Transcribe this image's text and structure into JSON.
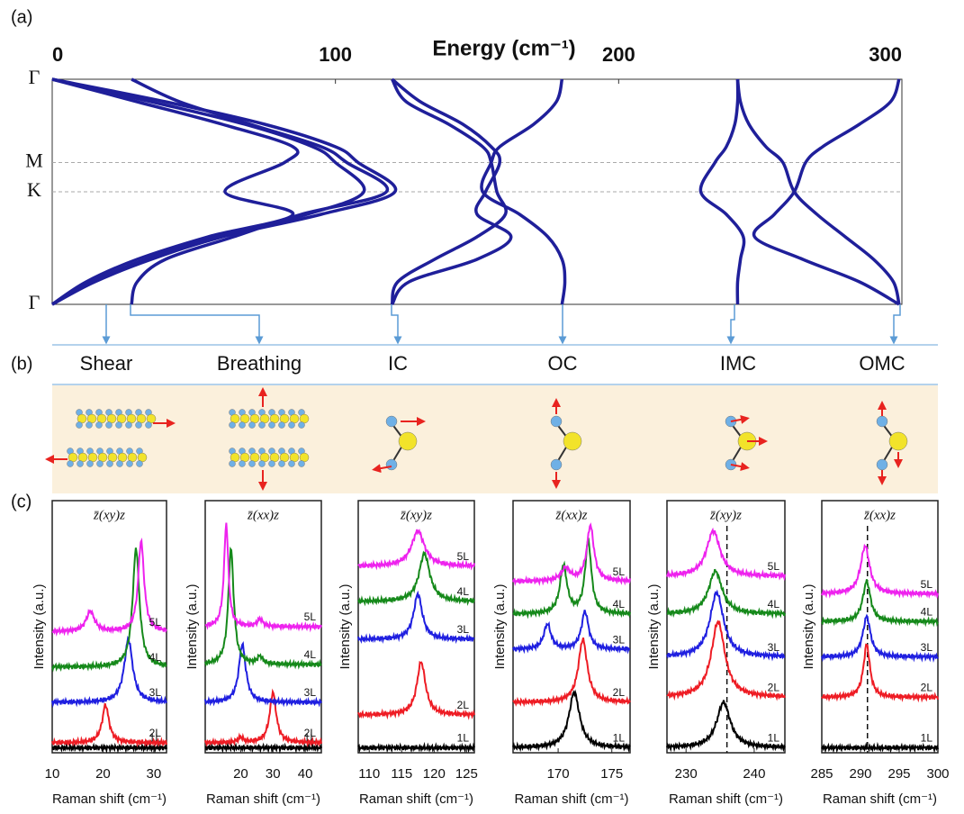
{
  "labels": {
    "a": "(a)",
    "b": "(b)",
    "c": "(c)"
  },
  "panel_a": {
    "type": "line",
    "x_label": "Energy (cm⁻¹)",
    "xlim": [
      0,
      300
    ],
    "xticks": [
      0,
      100,
      200,
      300
    ],
    "k_points": [
      {
        "value": 0,
        "label": "Γ"
      },
      {
        "value": 0.37,
        "label": "M"
      },
      {
        "value": 0.5,
        "label": "K"
      },
      {
        "value": 1,
        "label": "Γ"
      }
    ],
    "k": [
      0,
      0.1,
      0.2,
      0.3,
      0.37,
      0.5,
      0.6,
      0.7,
      0.8,
      0.9,
      1
    ],
    "color": "#1f1f9a",
    "branches": [
      [
        0,
        40,
        75,
        100,
        108,
        121,
        95,
        60,
        35,
        15,
        0
      ],
      [
        0,
        35,
        68,
        92,
        100,
        110,
        90,
        58,
        33,
        14,
        0
      ],
      [
        0,
        30,
        60,
        85,
        82,
        61,
        85,
        55,
        30,
        12,
        0
      ],
      [
        28,
        45,
        70,
        95,
        104,
        118,
        88,
        64,
        40,
        30,
        28
      ],
      [
        120,
        125,
        140,
        152,
        155,
        157,
        160,
        150,
        135,
        122,
        120
      ],
      [
        120,
        130,
        145,
        155,
        158,
        153,
        150,
        162,
        150,
        126,
        120
      ],
      [
        180,
        178,
        170,
        158,
        155,
        152,
        165,
        175,
        180,
        181,
        180
      ],
      [
        242,
        242,
        241,
        238,
        234,
        229,
        238,
        244,
        243,
        242,
        242
      ],
      [
        299,
        296,
        285,
        272,
        266,
        262,
        255,
        248,
        265,
        285,
        299
      ],
      [
        242,
        243,
        246,
        252,
        258,
        262,
        270,
        280,
        290,
        297,
        299
      ]
    ]
  },
  "panel_b": {
    "modes": [
      "Shear",
      "Breathing",
      "IC",
      "OC",
      "IMC",
      "OMC"
    ]
  },
  "panel_c": {
    "x_label": "Raman shift (cm⁻¹)",
    "y_label": "Intensity (a.u.)",
    "ylim": [
      0,
      10
    ],
    "layers": [
      "1L",
      "2L",
      "3L",
      "4L",
      "5L"
    ],
    "colors": [
      "#000000",
      "#ee1c24",
      "#1f1fe0",
      "#15891a",
      "#ee22ee"
    ],
    "panels": [
      {
        "title": "z̄(xy)z",
        "xlim": [
          10,
          32.5
        ],
        "xticks": [
          10,
          20,
          30
        ],
        "spectra": [
          {
            "offset": 0.2,
            "peaks": []
          },
          {
            "offset": 0.4,
            "peaks": [
              [
                20.5,
                1.5,
                0.8
              ]
            ]
          },
          {
            "offset": 2.0,
            "peaks": [
              [
                25,
                2.5,
                1
              ]
            ]
          },
          {
            "offset": 3.4,
            "peaks": [
              [
                26.5,
                4.7,
                0.8
              ]
            ]
          },
          {
            "offset": 4.8,
            "peaks": [
              [
                17.5,
                0.8,
                1
              ],
              [
                27.5,
                3.6,
                0.7
              ]
            ]
          }
        ]
      },
      {
        "title": "z̄(xx)z",
        "xlim": [
          9,
          45
        ],
        "xticks": [
          20,
          30,
          40
        ],
        "spectra": [
          {
            "offset": 0.2,
            "peaks": []
          },
          {
            "offset": 0.4,
            "peaks": [
              [
                20,
                0.2,
                1
              ],
              [
                30,
                2.0,
                1.2
              ]
            ]
          },
          {
            "offset": 2.0,
            "peaks": [
              [
                20.5,
                2.3,
                1.3
              ]
            ]
          },
          {
            "offset": 3.5,
            "peaks": [
              [
                17,
                4.6,
                1.0
              ],
              [
                26,
                0.3,
                1
              ]
            ]
          },
          {
            "offset": 5.0,
            "peaks": [
              [
                15.5,
                4.1,
                0.8
              ],
              [
                26,
                0.3,
                1
              ]
            ]
          }
        ]
      },
      {
        "title": "z̄(xy)z",
        "xlim": [
          108.3,
          126.2
        ],
        "xticks": [
          110,
          115,
          120,
          125
        ],
        "spectra": [
          {
            "offset": 0.2,
            "peaks": []
          },
          {
            "offset": 1.5,
            "peaks": [
              [
                118,
                2.1,
                0.8
              ]
            ]
          },
          {
            "offset": 4.5,
            "peaks": [
              [
                117.5,
                1.8,
                0.8
              ]
            ]
          },
          {
            "offset": 6.0,
            "peaks": [
              [
                118.5,
                1.9,
                1.0
              ]
            ]
          },
          {
            "offset": 7.4,
            "peaks": [
              [
                117.5,
                1.4,
                1.2
              ]
            ]
          }
        ]
      },
      {
        "title": "z̄(xx)z",
        "xlim": [
          165.8,
          176.7
        ],
        "xticks": [
          170,
          175
        ],
        "spectra": [
          {
            "offset": 0.2,
            "peaks": [
              [
                171.5,
                2.2,
                0.6
              ]
            ]
          },
          {
            "offset": 2.0,
            "peaks": [
              [
                172.3,
                2.5,
                0.5
              ]
            ]
          },
          {
            "offset": 4.1,
            "peaks": [
              [
                169,
                1.0,
                0.4
              ],
              [
                172.5,
                1.5,
                0.4
              ]
            ]
          },
          {
            "offset": 5.5,
            "peaks": [
              [
                170.5,
                1.9,
                0.4
              ],
              [
                172.8,
                2.9,
                0.35
              ]
            ]
          },
          {
            "offset": 6.8,
            "peaks": [
              [
                170.7,
                0.5,
                0.5
              ],
              [
                173,
                2.2,
                0.4
              ]
            ]
          }
        ]
      },
      {
        "title": "z̄(xy)z",
        "xlim": [
          227.2,
          244.5
        ],
        "xticks": [
          230,
          240
        ],
        "guide": 236,
        "spectra": [
          {
            "offset": 0.2,
            "peaks": [
              [
                235.5,
                1.8,
                1.2
              ]
            ]
          },
          {
            "offset": 2.2,
            "peaks": [
              [
                234.7,
                3.0,
                1.2
              ]
            ]
          },
          {
            "offset": 3.8,
            "peaks": [
              [
                234.5,
                2.55,
                1.2
              ]
            ]
          },
          {
            "offset": 5.5,
            "peaks": [
              [
                234.3,
                1.7,
                1.2
              ]
            ]
          },
          {
            "offset": 7.0,
            "peaks": [
              [
                234,
                1.8,
                1.2
              ]
            ]
          }
        ]
      },
      {
        "title": "z̄(xx)z",
        "xlim": [
          285,
          300
        ],
        "xticks": [
          285,
          290,
          295,
          300
        ],
        "guide": 290.9,
        "spectra": [
          {
            "offset": 0.2,
            "peaks": []
          },
          {
            "offset": 2.2,
            "peaks": [
              [
                290.8,
                2.1,
                0.5
              ]
            ]
          },
          {
            "offset": 3.8,
            "peaks": [
              [
                290.8,
                1.6,
                0.6
              ]
            ]
          },
          {
            "offset": 5.2,
            "peaks": [
              [
                290.8,
                1.6,
                0.6
              ]
            ]
          },
          {
            "offset": 6.3,
            "peaks": [
              [
                290.6,
                1.9,
                0.7
              ]
            ]
          }
        ]
      }
    ]
  }
}
